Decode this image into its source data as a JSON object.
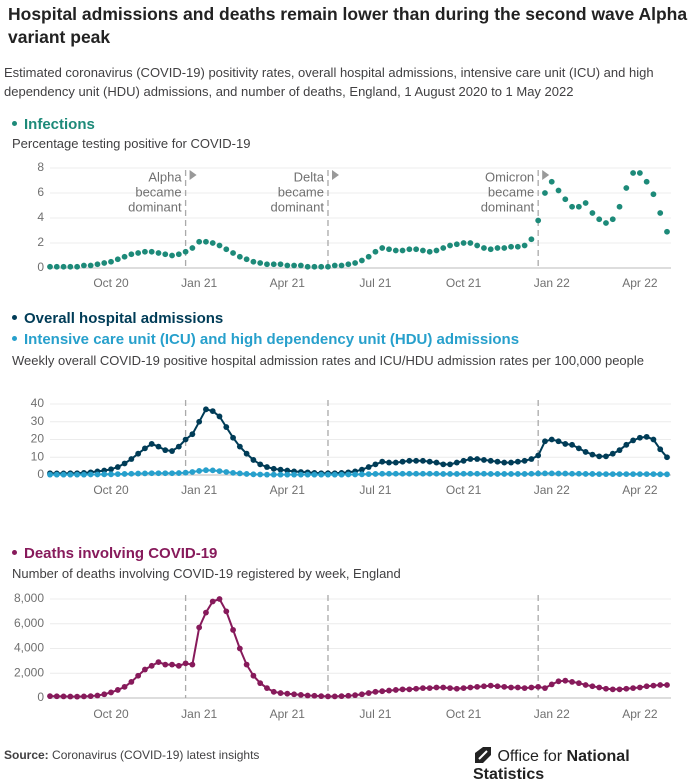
{
  "header": {
    "title": "Hospital admissions and deaths remain lower than during the second wave Alpha variant peak",
    "subtitle": "Estimated coronavirus (COVID-19) positivity rates, overall hospital admissions, intensive care unit (ICU) and high dependency unit (HDU) admissions, and number of deaths, England, 1 August 2020 to 1 May 2022"
  },
  "footer": {
    "source_label": "Source:",
    "source": "Coronavirus (COVID-19) latest insights",
    "logo_light": "Office for",
    "logo_bold": "National Statistics"
  },
  "chart_data": [
    {
      "type": "dot",
      "subtitle": "Percentage testing positive for COVID-19",
      "grid": true,
      "categories": [
        null,
        null,
        null,
        null,
        null,
        null,
        null,
        null,
        null,
        "Oct 20",
        null,
        null,
        null,
        null,
        null,
        null,
        null,
        null,
        null,
        null,
        null,
        null,
        "Jan 21",
        null,
        null,
        null,
        null,
        null,
        null,
        null,
        null,
        null,
        null,
        null,
        null,
        "Apr 21",
        null,
        null,
        null,
        null,
        null,
        null,
        null,
        null,
        null,
        null,
        null,
        null,
        "Jul 21",
        null,
        null,
        null,
        null,
        null,
        null,
        null,
        null,
        null,
        null,
        null,
        null,
        "Oct 21",
        null,
        null,
        null,
        null,
        null,
        null,
        null,
        null,
        null,
        null,
        null,
        null,
        "Jan 22",
        null,
        null,
        null,
        null,
        null,
        null,
        null,
        null,
        null,
        null,
        null,
        null,
        "Apr 22",
        null,
        null,
        null,
        null
      ],
      "ylim": [
        0,
        8
      ],
      "yticks": [
        0,
        2,
        4,
        6,
        8
      ],
      "annotations": [
        {
          "lines": [
            "Alpha",
            "became",
            "dominant"
          ],
          "at": 20
        },
        {
          "lines": [
            "Delta",
            "became",
            "dominant"
          ],
          "at": 41
        },
        {
          "lines": [
            "Omicron",
            "became",
            "dominant"
          ],
          "at": 72
        }
      ],
      "series": [
        {
          "name": "Infections",
          "color": "#1d8a79",
          "values": [
            0.1,
            0.1,
            0.1,
            0.1,
            0.1,
            0.2,
            0.2,
            0.3,
            0.4,
            0.5,
            0.7,
            0.9,
            1.1,
            1.2,
            1.3,
            1.3,
            1.2,
            1.1,
            1.0,
            1.1,
            1.3,
            1.6,
            2.1,
            2.1,
            2.0,
            1.8,
            1.5,
            1.2,
            0.9,
            0.7,
            0.5,
            0.4,
            0.3,
            0.3,
            0.3,
            0.2,
            0.2,
            0.2,
            0.1,
            0.1,
            0.1,
            0.1,
            0.2,
            0.2,
            0.3,
            0.4,
            0.6,
            0.9,
            1.3,
            1.6,
            1.5,
            1.4,
            1.4,
            1.5,
            1.5,
            1.4,
            1.3,
            1.4,
            1.6,
            1.8,
            1.9,
            2.0,
            2.0,
            1.8,
            1.6,
            1.5,
            1.6,
            1.6,
            1.7,
            1.7,
            1.8,
            2.3,
            3.8,
            6.0,
            6.9,
            6.2,
            5.5,
            4.9,
            4.9,
            5.2,
            4.4,
            3.9,
            3.6,
            3.9,
            4.9,
            6.4,
            7.6,
            7.6,
            6.9,
            5.9,
            4.4,
            2.9
          ]
        }
      ]
    },
    {
      "type": "line",
      "subtitle": "Weekly overall COVID-19 positive hospital admission rates and ICU/HDU admission rates per 100,000 people",
      "grid": true,
      "categories": [
        null,
        null,
        null,
        null,
        null,
        null,
        null,
        null,
        null,
        "Oct 20",
        null,
        null,
        null,
        null,
        null,
        null,
        null,
        null,
        null,
        null,
        null,
        null,
        "Jan 21",
        null,
        null,
        null,
        null,
        null,
        null,
        null,
        null,
        null,
        null,
        null,
        null,
        "Apr 21",
        null,
        null,
        null,
        null,
        null,
        null,
        null,
        null,
        null,
        null,
        null,
        null,
        "Jul 21",
        null,
        null,
        null,
        null,
        null,
        null,
        null,
        null,
        null,
        null,
        null,
        null,
        "Oct 21",
        null,
        null,
        null,
        null,
        null,
        null,
        null,
        null,
        null,
        null,
        null,
        null,
        "Jan 22",
        null,
        null,
        null,
        null,
        null,
        null,
        null,
        null,
        null,
        null,
        null,
        null,
        "Apr 22",
        null,
        null,
        null,
        null
      ],
      "ylim": [
        0,
        40
      ],
      "yticks": [
        0,
        10,
        20,
        30,
        40
      ],
      "series": [
        {
          "name": "Overall hospital admissions",
          "color": "#003c57",
          "values": [
            1.0,
            0.9,
            0.9,
            1.0,
            1.0,
            1.2,
            1.5,
            2.0,
            2.5,
            3.2,
            4.5,
            6.5,
            9,
            12,
            15,
            17.5,
            16,
            14,
            13.5,
            16,
            20,
            23,
            30,
            37,
            36,
            33,
            27,
            21,
            16,
            12,
            8.5,
            6,
            4.5,
            3.5,
            3,
            2.5,
            2,
            1.7,
            1.5,
            1.2,
            1.0,
            1.0,
            1.0,
            1.2,
            1.5,
            2,
            3,
            4.5,
            6,
            7.5,
            7,
            7,
            7.5,
            8,
            8,
            8,
            7.5,
            7,
            6,
            6,
            7,
            8,
            9,
            9,
            8.5,
            8,
            7.5,
            7,
            7,
            7.5,
            8,
            9,
            11,
            19,
            20,
            19,
            17.5,
            17,
            15,
            13,
            11.5,
            10.5,
            10.5,
            12,
            14,
            17,
            19.5,
            21,
            21.5,
            20,
            14.5,
            10
          ]
        },
        {
          "name": "Intensive care unit (ICU) and high dependency unit (HDU) admissions",
          "color": "#27a0cc",
          "values": [
            0.2,
            0.2,
            0.2,
            0.2,
            0.2,
            0.2,
            0.3,
            0.3,
            0.4,
            0.4,
            0.5,
            0.6,
            0.7,
            0.8,
            0.9,
            1.0,
            1.0,
            1.0,
            1.0,
            1.1,
            1.3,
            1.7,
            2.3,
            2.7,
            2.6,
            2.2,
            1.7,
            1.2,
            0.9,
            0.6,
            0.4,
            0.3,
            0.2,
            0.2,
            0.2,
            0.2,
            0.2,
            0.2,
            0.2,
            0.2,
            0.2,
            0.2,
            0.2,
            0.2,
            0.3,
            0.3,
            0.4,
            0.5,
            0.6,
            0.7,
            0.7,
            0.7,
            0.7,
            0.7,
            0.7,
            0.7,
            0.7,
            0.7,
            0.6,
            0.6,
            0.6,
            0.7,
            0.7,
            0.7,
            0.7,
            0.6,
            0.6,
            0.6,
            0.6,
            0.6,
            0.6,
            0.7,
            0.8,
            0.9,
            0.9,
            0.8,
            0.8,
            0.7,
            0.7,
            0.6,
            0.6,
            0.5,
            0.5,
            0.5,
            0.5,
            0.5,
            0.5,
            0.5,
            0.5,
            0.5,
            0.4,
            0.4
          ]
        }
      ]
    },
    {
      "type": "line",
      "subtitle": "Number of deaths involving COVID-19 registered by week, England",
      "grid": true,
      "categories": [
        null,
        null,
        null,
        null,
        null,
        null,
        null,
        null,
        null,
        "Oct 20",
        null,
        null,
        null,
        null,
        null,
        null,
        null,
        null,
        null,
        null,
        null,
        null,
        "Jan 21",
        null,
        null,
        null,
        null,
        null,
        null,
        null,
        null,
        null,
        null,
        null,
        null,
        "Apr 21",
        null,
        null,
        null,
        null,
        null,
        null,
        null,
        null,
        null,
        null,
        null,
        null,
        "Jul 21",
        null,
        null,
        null,
        null,
        null,
        null,
        null,
        null,
        null,
        null,
        null,
        null,
        "Oct 21",
        null,
        null,
        null,
        null,
        null,
        null,
        null,
        null,
        null,
        null,
        null,
        null,
        "Jan 22",
        null,
        null,
        null,
        null,
        null,
        null,
        null,
        null,
        null,
        null,
        null,
        null,
        "Apr 22",
        null,
        null,
        null,
        null
      ],
      "ylim": [
        0,
        8000
      ],
      "yticks": [
        0,
        {
          "value": 2000,
          "label": "2,000"
        },
        {
          "value": 4000,
          "label": "4,000"
        },
        {
          "value": 6000,
          "label": "6,000"
        },
        {
          "value": 8000,
          "label": "8,000"
        }
      ],
      "series": [
        {
          "name": "Deaths involving COVID-19",
          "color": "#871a5b",
          "values": [
            150,
            140,
            130,
            120,
            110,
            130,
            150,
            200,
            300,
            450,
            650,
            900,
            1300,
            1800,
            2300,
            2600,
            2900,
            2700,
            2700,
            2600,
            2800,
            2700,
            5700,
            6900,
            7800,
            8000,
            7000,
            5500,
            4000,
            2700,
            1800,
            1200,
            800,
            500,
            400,
            350,
            300,
            250,
            200,
            180,
            150,
            130,
            130,
            150,
            180,
            230,
            300,
            400,
            500,
            550,
            600,
            650,
            700,
            700,
            750,
            800,
            800,
            850,
            850,
            800,
            750,
            800,
            850,
            900,
            950,
            1000,
            950,
            900,
            850,
            850,
            800,
            850,
            900,
            800,
            1100,
            1350,
            1400,
            1300,
            1200,
            1050,
            950,
            850,
            750,
            700,
            700,
            750,
            800,
            850,
            950,
            1000,
            1050,
            1050
          ]
        }
      ]
    }
  ]
}
